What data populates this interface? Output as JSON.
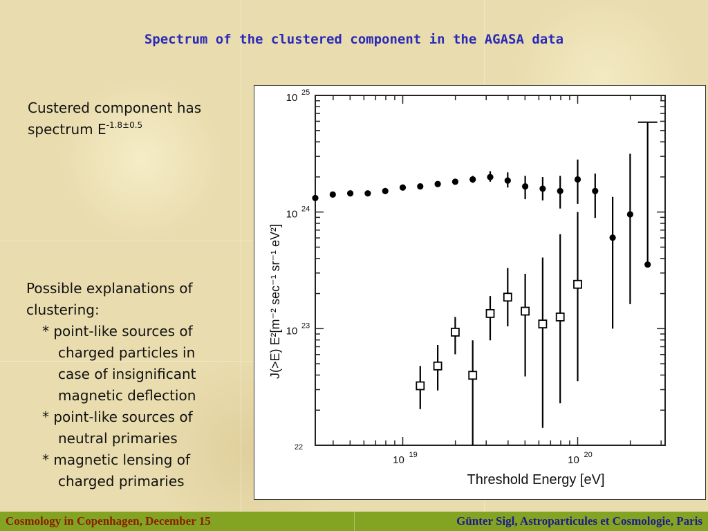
{
  "slide": {
    "title": "Spectrum of the clustered component in the AGASA data"
  },
  "left_text": {
    "spectrum_line1": "Custered component has",
    "spectrum_line2": "spectrum E",
    "spectrum_exponent": "-1.8±0.5",
    "explanations_heading_1": "Possible explanations of",
    "explanations_heading_2": "clustering:",
    "bullets": [
      [
        "* point-like sources of",
        "charged particles in",
        "case of insignificant",
        "magnetic deflection"
      ],
      [
        "* point-like sources of",
        "neutral primaries"
      ],
      [
        "* magnetic lensing of",
        "charged primaries"
      ]
    ]
  },
  "footer": {
    "left": "Cosmology in Copenhagen, December 15",
    "right": "Günter Sigl, Astroparticules et Cosmologie, Paris"
  },
  "chart_data": {
    "type": "scatter",
    "title": "",
    "xlabel": "Threshold Energy [eV]",
    "ylabel": "J(>E) E²[m⁻² sec⁻¹ sr⁻¹ eV²]",
    "x_scale": "log",
    "y_scale": "log",
    "xlim_log10": [
      18.5,
      20.5
    ],
    "ylim_log10": [
      22,
      25
    ],
    "x_ticks": [
      {
        "base": "10",
        "exp": "19",
        "log10": 19
      },
      {
        "base": "10",
        "exp": "20",
        "log10": 20
      }
    ],
    "y_ticks": [
      {
        "base": "10",
        "exp": "22",
        "log10": 22
      },
      {
        "base": "10",
        "exp": "23",
        "log10": 23
      },
      {
        "base": "10",
        "exp": "24",
        "log10": 24
      },
      {
        "base": "10",
        "exp": "25",
        "log10": 25
      }
    ],
    "grid": false,
    "colors": {
      "marker": "#000000"
    },
    "series": [
      {
        "marker": "filled",
        "points": [
          {
            "x": 18.5,
            "y": 24.12
          },
          {
            "x": 18.6,
            "y": 24.15
          },
          {
            "x": 18.7,
            "y": 24.16
          },
          {
            "x": 18.8,
            "y": 24.16
          },
          {
            "x": 18.9,
            "y": 24.18
          },
          {
            "x": 19.0,
            "y": 24.21
          },
          {
            "x": 19.1,
            "y": 24.22
          },
          {
            "x": 19.2,
            "y": 24.24
          },
          {
            "x": 19.3,
            "y": 24.26
          },
          {
            "x": 19.4,
            "y": 24.28,
            "lo": 24.25,
            "hi": 24.31
          },
          {
            "x": 19.5,
            "y": 24.3,
            "lo": 24.26,
            "hi": 24.35
          },
          {
            "x": 19.6,
            "y": 24.27,
            "lo": 24.21,
            "hi": 24.34
          },
          {
            "x": 19.7,
            "y": 24.22,
            "lo": 24.11,
            "hi": 24.31
          },
          {
            "x": 19.8,
            "y": 24.2,
            "lo": 24.1,
            "hi": 24.3
          },
          {
            "x": 19.9,
            "y": 24.18,
            "lo": 24.03,
            "hi": 24.31
          },
          {
            "x": 20.0,
            "y": 24.28,
            "lo": 24.07,
            "hi": 24.45
          },
          {
            "x": 20.1,
            "y": 24.18,
            "lo": 23.95,
            "hi": 24.33
          },
          {
            "x": 20.2,
            "y": 23.78,
            "lo": 23.0,
            "hi": 24.13
          },
          {
            "x": 20.3,
            "y": 23.98,
            "lo": 23.21,
            "hi": 24.5
          },
          {
            "x": 20.4,
            "y": 23.55,
            "hi": 24.77
          }
        ]
      },
      {
        "marker": "open",
        "points": [
          {
            "x": 19.1,
            "y": 22.51,
            "lo": 22.31,
            "hi": 22.68
          },
          {
            "x": 19.2,
            "y": 22.68,
            "lo": 22.47,
            "hi": 22.86
          },
          {
            "x": 19.3,
            "y": 22.97,
            "lo": 22.78,
            "hi": 23.1
          },
          {
            "x": 19.4,
            "y": 22.6,
            "lo": 21.97,
            "hi": 22.9
          },
          {
            "x": 19.5,
            "y": 23.13,
            "lo": 22.9,
            "hi": 23.28
          },
          {
            "x": 19.6,
            "y": 23.27,
            "lo": 23.02,
            "hi": 23.52
          },
          {
            "x": 19.7,
            "y": 23.15,
            "lo": 22.59,
            "hi": 23.47
          },
          {
            "x": 19.8,
            "y": 23.04,
            "lo": 22.15,
            "hi": 23.61
          },
          {
            "x": 19.9,
            "y": 23.1,
            "lo": 22.36,
            "hi": 23.81
          },
          {
            "x": 20.0,
            "y": 23.38,
            "lo": 22.55,
            "hi": 24.0
          }
        ]
      }
    ]
  }
}
